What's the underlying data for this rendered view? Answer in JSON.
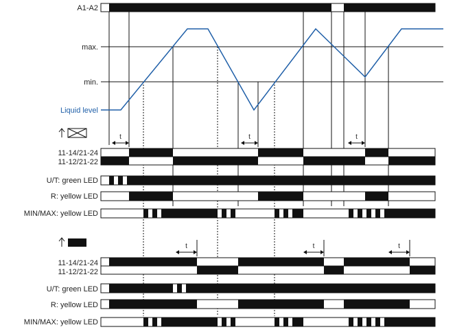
{
  "labels": {
    "supply": "A1-A2",
    "max": "max.",
    "min": "min.",
    "level": "Liquid level",
    "contacts_a_line1": "11-14/21-24",
    "contacts_a_line2": "11-12/21-22",
    "green_led_a": "U/T: green LED",
    "yellow_led_a": "R: yellow LED",
    "minmax_led_a": "MIN/MAX: yellow LED",
    "contacts_b_line1": "11-14/21-24",
    "contacts_b_line2": "11-12/21-22",
    "green_led_b": "U/T: green LED",
    "yellow_led_b": "R: yellow LED",
    "minmax_led_b": "MIN/MAX: yellow LED"
  },
  "delay_labels": [
    "t",
    "t",
    "t",
    "t",
    "t",
    "t"
  ],
  "colors": {
    "line": "#111111",
    "level": "#1f5fa8",
    "fill": "#111111"
  }
}
